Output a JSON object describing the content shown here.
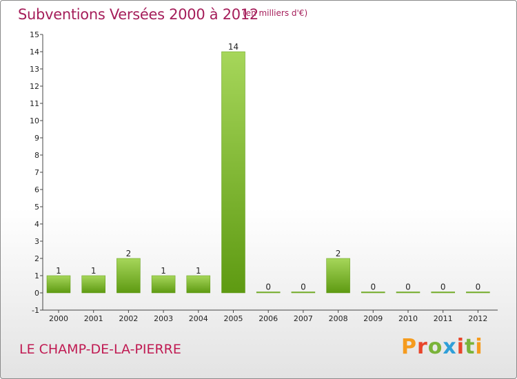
{
  "header": {
    "title": "Subventions Versées 2000 à 2012",
    "subtitle": "(en milliers d'€)"
  },
  "footer": {
    "location": "LE CHAMP-DE-LA-PIERRE",
    "logo": "Proxiti",
    "logo_colors": [
      "#f59b1e",
      "#e8452b",
      "#7ab33a",
      "#2f9fd8",
      "#e8452b",
      "#7ab33a",
      "#f59b1e"
    ]
  },
  "colors": {
    "bar_light": "#a6d65a",
    "bar_dark": "#5e9a12",
    "title": "#a51e5a",
    "location": "#c01a52"
  },
  "chart_data": {
    "type": "bar",
    "title": "Subventions Versées 2000 à 2012",
    "subtitle": "(en milliers d'€)",
    "categories": [
      "2000",
      "2001",
      "2002",
      "2003",
      "2004",
      "2005",
      "2006",
      "2007",
      "2008",
      "2009",
      "2010",
      "2011",
      "2012"
    ],
    "values": [
      1,
      1,
      2,
      1,
      1,
      14,
      0,
      0,
      2,
      0,
      0,
      0,
      0
    ],
    "data_labels": [
      "1",
      "1",
      "2",
      "1",
      "1",
      "14",
      "0",
      "0",
      "2",
      "0",
      "0",
      "0",
      "0"
    ],
    "ylim": [
      -1,
      15
    ],
    "yticks": [
      "-1",
      "0",
      "1",
      "2",
      "3",
      "4",
      "5",
      "6",
      "7",
      "8",
      "9",
      "10",
      "11",
      "12",
      "13",
      "14",
      "15"
    ],
    "grid": false,
    "legend": "none"
  }
}
